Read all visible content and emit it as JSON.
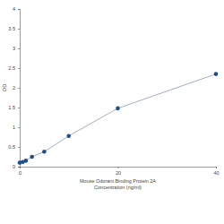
{
  "chart_data": {
    "type": "line",
    "x_label": [
      "Mouse Odorant Binding Protein 2A",
      "Concentration (ng/ml)"
    ],
    "y_label": "OD",
    "x": [
      0,
      0.625,
      1.25,
      2.5,
      5,
      10,
      20,
      40
    ],
    "series": [
      {
        "name": "OD",
        "color": "#1f4e8c",
        "marker": "circle",
        "values": [
          0.1,
          0.12,
          0.15,
          0.25,
          0.38,
          0.78,
          1.48,
          2.35
        ]
      }
    ],
    "xlim": [
      0,
      40
    ],
    "xticks": [
      0,
      20,
      40
    ],
    "ylim": [
      0,
      4
    ],
    "yticks": [
      0,
      0.5,
      1,
      1.5,
      2,
      2.5,
      3,
      3.5,
      4
    ],
    "grid": false
  }
}
